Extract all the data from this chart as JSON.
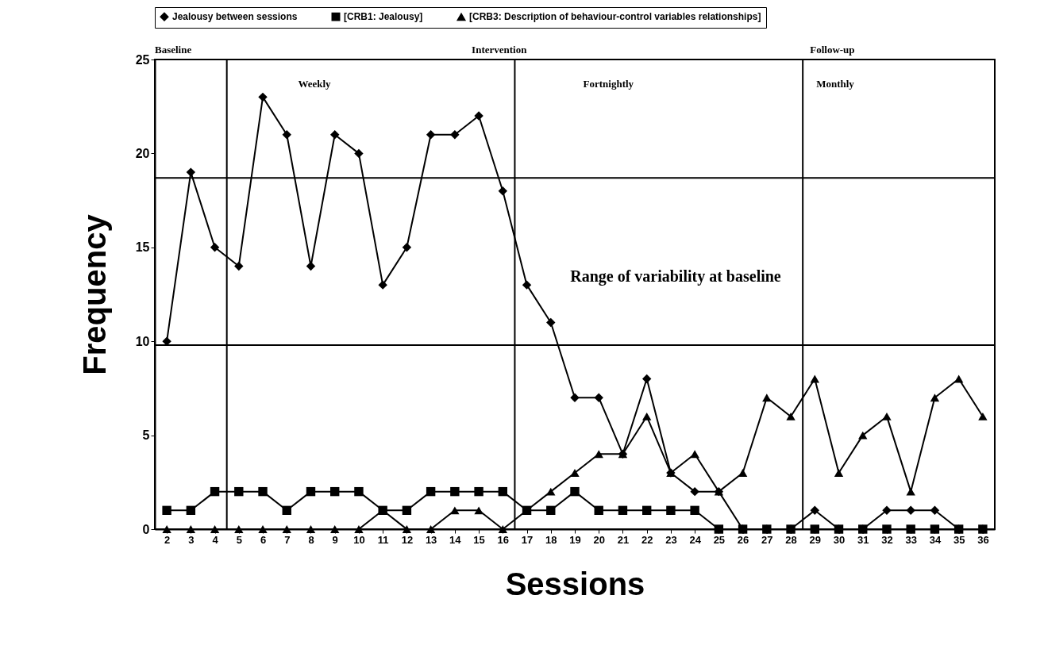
{
  "chart_data": {
    "type": "line",
    "xlabel": "Sessions",
    "ylabel": "Frequency",
    "x": [
      2,
      3,
      4,
      5,
      6,
      7,
      8,
      9,
      10,
      11,
      12,
      13,
      14,
      15,
      16,
      17,
      18,
      19,
      20,
      21,
      22,
      23,
      24,
      25,
      26,
      27,
      28,
      29,
      30,
      31,
      32,
      33,
      34,
      35,
      36
    ],
    "xlim": [
      1.5,
      36.5
    ],
    "xticks": [
      2,
      3,
      4,
      5,
      6,
      7,
      8,
      9,
      10,
      11,
      12,
      13,
      14,
      15,
      16,
      17,
      18,
      19,
      20,
      21,
      22,
      23,
      24,
      25,
      26,
      27,
      28,
      29,
      30,
      31,
      32,
      33,
      34,
      35,
      36
    ],
    "ylim": [
      0,
      25
    ],
    "yticks": [
      0,
      5,
      10,
      15,
      20,
      25
    ],
    "series": [
      {
        "name": "Jealousy between sessions",
        "color": "#000000",
        "marker": "diamond",
        "values": [
          10,
          19,
          15,
          14,
          23,
          21,
          14,
          21,
          20,
          13,
          15,
          21,
          21,
          22,
          18,
          13,
          11,
          7,
          7,
          4,
          8,
          3,
          2,
          2,
          0,
          0,
          0,
          1,
          0,
          0,
          1,
          1,
          1,
          0,
          0
        ]
      },
      {
        "name": "[CRB1: Jealousy]",
        "color": "#000000",
        "marker": "square",
        "values": [
          1,
          1,
          2,
          2,
          2,
          1,
          2,
          2,
          2,
          1,
          1,
          2,
          2,
          2,
          2,
          1,
          1,
          2,
          1,
          1,
          1,
          1,
          1,
          0,
          0,
          0,
          0,
          0,
          0,
          0,
          0,
          0,
          0,
          0,
          0
        ]
      },
      {
        "name": "[CRB3: Description of behaviour-control variables relationships]",
        "color": "#000000",
        "marker": "triangle",
        "values": [
          0,
          0,
          0,
          0,
          0,
          0,
          0,
          0,
          0,
          1,
          0,
          0,
          1,
          1,
          0,
          1,
          2,
          3,
          4,
          4,
          6,
          3,
          4,
          2,
          3,
          7,
          6,
          8,
          3,
          5,
          6,
          2,
          7,
          8,
          6
        ]
      }
    ],
    "ref_lines": [
      {
        "axis": "x",
        "value": 4.5
      },
      {
        "axis": "x",
        "value": 16.5
      },
      {
        "axis": "x",
        "value": 28.5
      },
      {
        "axis": "y",
        "value": 18.7
      },
      {
        "axis": "y",
        "value": 9.8
      }
    ],
    "annotations": [
      "Baseline",
      "Intervention",
      "Follow-up",
      "Weekly",
      "Fortnightly",
      "Monthly",
      "Range of variability at baseline"
    ],
    "legend": "top",
    "grid": false,
    "line_style": "solid"
  }
}
